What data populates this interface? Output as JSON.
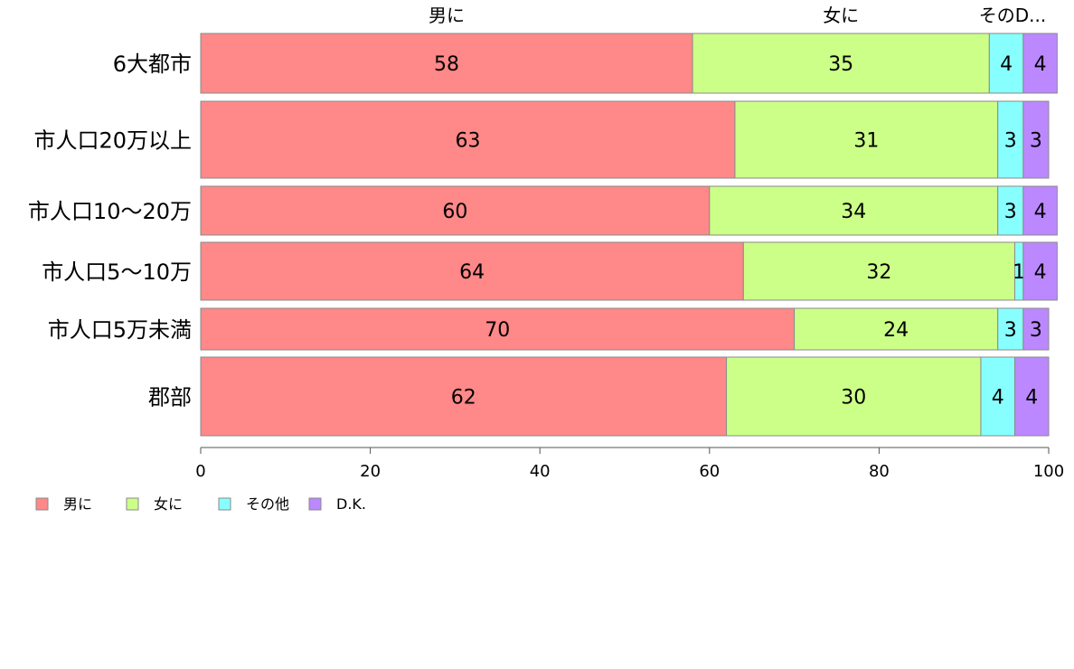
{
  "chart_data": {
    "type": "bar",
    "orientation": "horizontal",
    "stacked": true,
    "categories": [
      "6大都市",
      "市人口20万以上",
      "市人口10〜20万",
      "市人口5〜10万",
      "市人口5万未満",
      "郡部"
    ],
    "series": [
      {
        "name": "男に",
        "values": [
          58,
          63,
          60,
          64,
          70,
          62
        ],
        "color": "#ff8888"
      },
      {
        "name": "女に",
        "values": [
          35,
          31,
          34,
          32,
          24,
          30
        ],
        "color": "#ccff88"
      },
      {
        "name": "その他",
        "values": [
          4,
          3,
          3,
          1,
          3,
          4
        ],
        "color": "#88ffff"
      },
      {
        "name": "D.K.",
        "values": [
          4,
          3,
          4,
          4,
          3,
          4
        ],
        "color": "#bb88ff"
      }
    ],
    "top_labels": [
      "男に",
      "女に",
      "そのD..."
    ],
    "xlim": [
      0,
      100
    ],
    "xticks": [
      0,
      20,
      40,
      60,
      80,
      100
    ],
    "grid": false,
    "legend_position": "bottom-left"
  }
}
